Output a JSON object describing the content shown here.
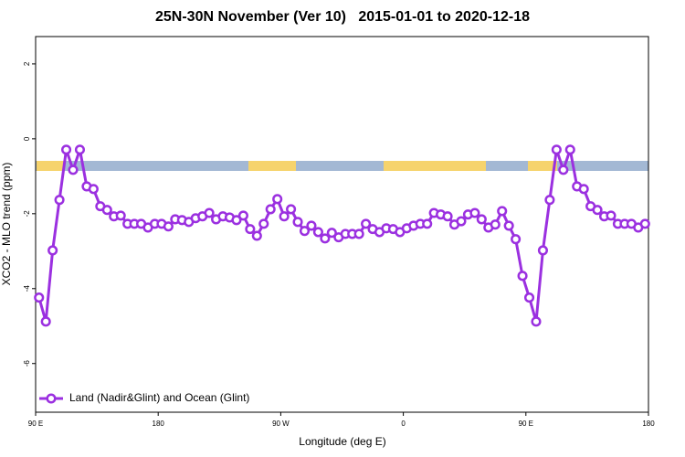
{
  "chart_data": {
    "type": "line",
    "title": "25N-30N November (Ver 10)   2015-01-01 to 2020-12-18",
    "x_label": "Longitude (deg E)",
    "y_label": "XCO2 - MLO trend (ppm)",
    "xlim": [
      90,
      540
    ],
    "xticks": [
      {
        "value": 90,
        "label": "90 E"
      },
      {
        "value": 180,
        "label": "180"
      },
      {
        "value": 270,
        "label": "90 W"
      },
      {
        "value": 360,
        "label": "0"
      },
      {
        "value": 450,
        "label": "90 E"
      },
      {
        "value": 540,
        "label": "180"
      }
    ],
    "ylim": [
      -7.3,
      2.73
    ],
    "yticks": [
      -6,
      -4,
      -2,
      0,
      2
    ],
    "legend": "bottom-left",
    "x": [
      92.5,
      97.5,
      102.5,
      107.5,
      112.5,
      117.5,
      122.5,
      127.5,
      132.5,
      137.5,
      142.5,
      147.5,
      152.5,
      157.5,
      162.5,
      167.5,
      172.5,
      177.5,
      182.5,
      187.5,
      192.5,
      197.5,
      202.5,
      207.5,
      212.5,
      217.5,
      222.5,
      227.5,
      232.5,
      237.5,
      242.5,
      247.5,
      252.5,
      257.5,
      262.5,
      267.5,
      272.5,
      277.5,
      282.5,
      287.5,
      292.5,
      297.5,
      302.5,
      307.5,
      312.5,
      317.5,
      322.5,
      327.5,
      332.5,
      337.5,
      342.5,
      347.5,
      352.5,
      357.5,
      362.5,
      367.5,
      372.5,
      377.5,
      382.5,
      387.5,
      392.5,
      397.5,
      402.5,
      407.5,
      412.5,
      417.5,
      422.5,
      427.5,
      432.5,
      437.5,
      442.5,
      447.5,
      452.5,
      457.5,
      462.5,
      467.5,
      472.5,
      477.5,
      482.5,
      487.5,
      492.5,
      497.5,
      502.5,
      507.5,
      512.5,
      517.5,
      522.5,
      527.5,
      532.5,
      537.5
    ],
    "series": [
      {
        "name": "Land (Nadir&Glint) and Ocean (Glint)",
        "color": "#9b30e0",
        "values": [
          -4.24,
          -4.88,
          -2.98,
          -1.63,
          -0.29,
          -0.83,
          -0.29,
          -1.27,
          -1.34,
          -1.8,
          -1.9,
          -2.07,
          -2.05,
          -2.27,
          -2.27,
          -2.27,
          -2.37,
          -2.27,
          -2.27,
          -2.34,
          -2.15,
          -2.17,
          -2.22,
          -2.12,
          -2.07,
          -1.98,
          -2.15,
          -2.07,
          -2.1,
          -2.17,
          -2.05,
          -2.41,
          -2.59,
          -2.27,
          -1.88,
          -1.61,
          -2.07,
          -1.88,
          -2.22,
          -2.46,
          -2.32,
          -2.49,
          -2.66,
          -2.51,
          -2.63,
          -2.54,
          -2.54,
          -2.54,
          -2.27,
          -2.41,
          -2.49,
          -2.39,
          -2.41,
          -2.49,
          -2.39,
          -2.32,
          -2.27,
          -2.27,
          -1.98,
          -2.02,
          -2.07,
          -2.29,
          -2.2,
          -2.02,
          -1.98,
          -2.15,
          -2.37,
          -2.29,
          -1.93,
          -2.32,
          -2.68,
          -3.66,
          -4.24,
          -4.88,
          -2.98,
          -1.63,
          -0.29,
          -0.83,
          -0.29,
          -1.27,
          -1.34,
          -1.8,
          -1.9,
          -2.07,
          -2.05,
          -2.27,
          -2.27,
          -2.27,
          -2.37,
          -2.27
        ]
      }
    ]
  }
}
